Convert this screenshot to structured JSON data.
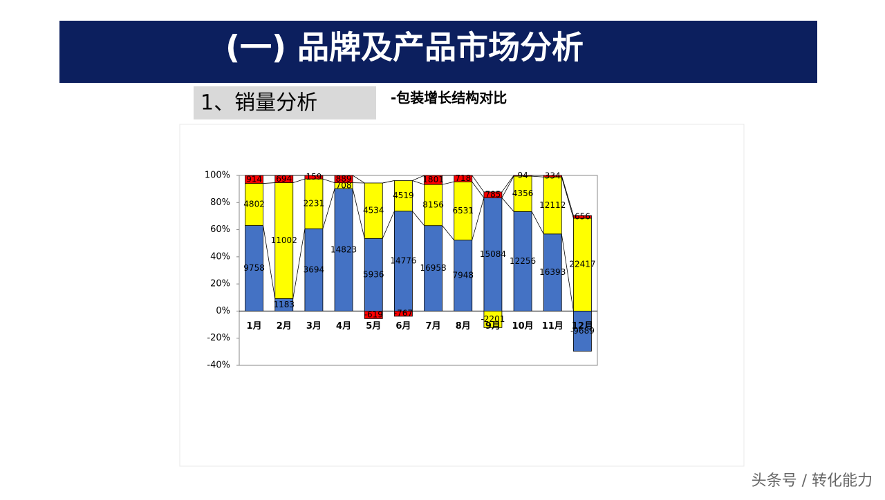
{
  "header": {
    "title": "(一) 品牌及产品市场分析"
  },
  "section": "1、销量分析",
  "subtitle": "-包装增长结构对比",
  "watermark": "头条号 / 转化能力",
  "chart_data": {
    "type": "bar",
    "stacked": "percent",
    "categories": [
      "1月",
      "2月",
      "3月",
      "4月",
      "5月",
      "6月",
      "7月",
      "8月",
      "9月",
      "10月",
      "11月",
      "12月"
    ],
    "series": [
      {
        "color": "#4472c4",
        "values": [
          9758,
          1183,
          3694,
          14823,
          5936,
          14776,
          16958,
          7948,
          15084,
          12256,
          16393,
          -9689
        ]
      },
      {
        "color": "#ffff00",
        "values": [
          4802,
          11002,
          2231,
          708,
          4534,
          4519,
          8156,
          6531,
          -2201,
          4356,
          12112,
          22417
        ]
      },
      {
        "color": "#ff0000",
        "values": [
          914,
          694,
          159,
          889,
          -619,
          -767,
          1801,
          718,
          785,
          94,
          334,
          656
        ]
      }
    ],
    "ylim": [
      -40,
      100
    ],
    "yticks": [
      {
        "value": -40,
        "label": "-40%"
      },
      {
        "value": -20,
        "label": "-20%"
      },
      {
        "value": 0,
        "label": "0%"
      },
      {
        "value": 20,
        "label": "20%"
      },
      {
        "value": 40,
        "label": "40%"
      },
      {
        "value": 60,
        "label": "60%"
      },
      {
        "value": 80,
        "label": "80%"
      },
      {
        "value": 100,
        "label": "100%"
      }
    ]
  }
}
